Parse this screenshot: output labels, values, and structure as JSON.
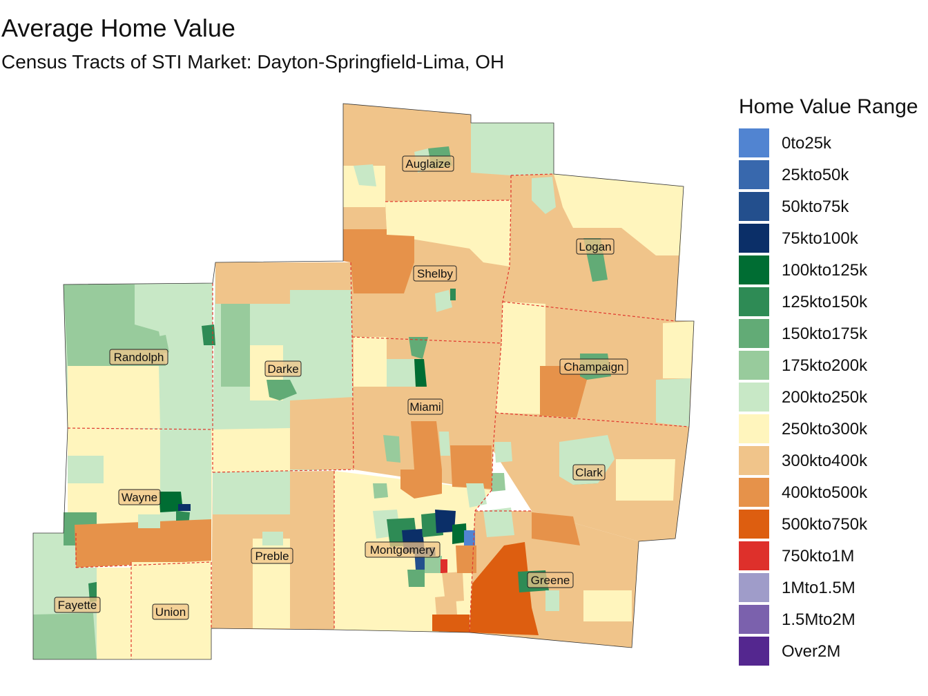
{
  "title": "Average Home Value",
  "subtitle": "Census Tracts of STI Market: Dayton-Springfield-Lima, OH",
  "legend": {
    "title": "Home Value Range",
    "items": [
      {
        "label": "0to25k",
        "color": "#5184d1"
      },
      {
        "label": "25kto50k",
        "color": "#3868ad"
      },
      {
        "label": "50kto75k",
        "color": "#234f8d"
      },
      {
        "label": "75kto100k",
        "color": "#0b2f68"
      },
      {
        "label": "100kto125k",
        "color": "#006d33"
      },
      {
        "label": "125kto150k",
        "color": "#2e8b55"
      },
      {
        "label": "150kto175k",
        "color": "#62ab76"
      },
      {
        "label": "175kto200k",
        "color": "#98cb9c"
      },
      {
        "label": "200kto250k",
        "color": "#c8e8c6"
      },
      {
        "label": "250kto300k",
        "color": "#fff5bd"
      },
      {
        "label": "300kto400k",
        "color": "#f0c48a"
      },
      {
        "label": "400kto500k",
        "color": "#e6924a"
      },
      {
        "label": "500kto750k",
        "color": "#dd5e10"
      },
      {
        "label": "750kto1M",
        "color": "#de302b"
      },
      {
        "label": "1Mto1.5M",
        "color": "#9f9cc9"
      },
      {
        "label": "1.5Mto2M",
        "color": "#7b61ad"
      },
      {
        "label": "Over2M",
        "color": "#54278f"
      }
    ]
  },
  "counties": [
    "Auglaize",
    "Logan",
    "Shelby",
    "Randolph",
    "Darke",
    "Champaign",
    "Miami",
    "Clark",
    "Wayne",
    "Montgomery",
    "Preble",
    "Greene",
    "Fayette",
    "Union"
  ]
}
